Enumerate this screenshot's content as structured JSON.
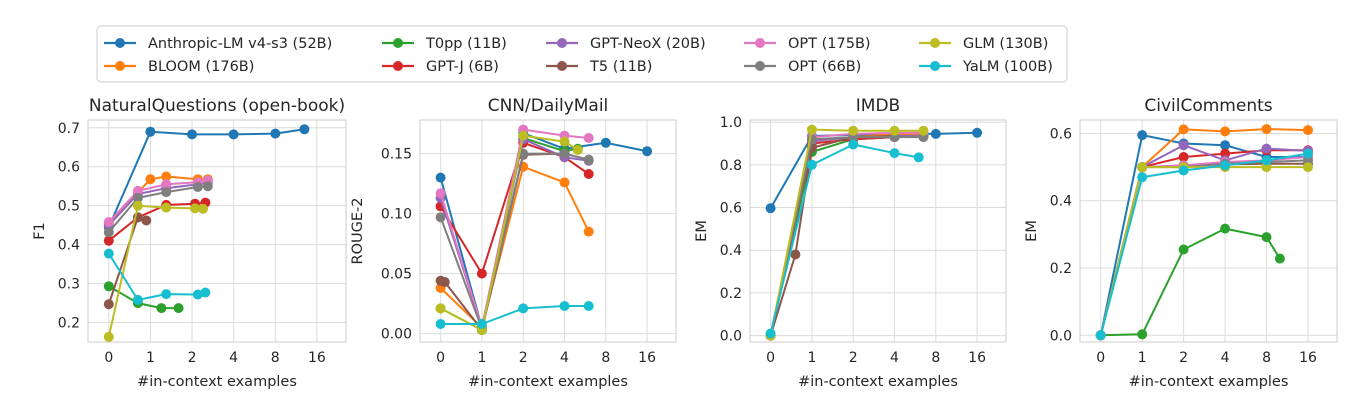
{
  "legend": {
    "items": [
      {
        "name": "Anthropic-LM v4-s3 (52B)",
        "color": "#1f77b4"
      },
      {
        "name": "BLOOM (176B)",
        "color": "#ff7f0e"
      },
      {
        "name": "T0pp (11B)",
        "color": "#2ca02c"
      },
      {
        "name": "GPT-J (6B)",
        "color": "#d62728"
      },
      {
        "name": "GPT-NeoX (20B)",
        "color": "#9467bd"
      },
      {
        "name": "T5 (11B)",
        "color": "#8c564b"
      },
      {
        "name": "OPT (175B)",
        "color": "#e377c2"
      },
      {
        "name": "OPT (66B)",
        "color": "#7f7f7f"
      },
      {
        "name": "GLM (130B)",
        "color": "#bcbd22"
      },
      {
        "name": "YaLM (100B)",
        "color": "#17becf"
      }
    ]
  },
  "chart_data": [
    {
      "type": "line",
      "title": "NaturalQuestions (open-book)",
      "xlabel": "#in-context examples",
      "ylabel": "F1",
      "x_scale": "symlog",
      "x_ticks": [
        "0",
        "1",
        "2",
        "4",
        "8",
        "16"
      ],
      "y_ticks": [
        "0.2",
        "0.3",
        "0.4",
        "0.5",
        "0.6",
        "0.7"
      ],
      "ylim": [
        0.15,
        0.72
      ],
      "grid": true,
      "series": [
        {
          "name": "Anthropic-LM v4-s3 (52B)",
          "x": [
            0,
            1,
            2,
            4,
            8,
            13
          ],
          "y": [
            0.445,
            0.69,
            0.683,
            0.683,
            0.685,
            0.696
          ]
        },
        {
          "name": "BLOOM (176B)",
          "x": [
            0,
            1,
            1.3,
            2.2,
            2.6
          ],
          "y": [
            0.455,
            0.568,
            0.575,
            0.568,
            0.568
          ]
        },
        {
          "name": "T0pp (11B)",
          "x": [
            0,
            0.7,
            1.2,
            1.6
          ],
          "y": [
            0.293,
            0.25,
            0.237,
            0.237
          ]
        },
        {
          "name": "GPT-J (6B)",
          "x": [
            0,
            0.7,
            1.3,
            2.1,
            2.5
          ],
          "y": [
            0.41,
            0.47,
            0.502,
            0.505,
            0.508
          ]
        },
        {
          "name": "GPT-NeoX (20B)",
          "x": [
            0,
            0.7,
            1.3,
            2.2,
            2.6
          ],
          "y": [
            0.45,
            0.53,
            0.545,
            0.555,
            0.56
          ]
        },
        {
          "name": "T5 (11B)",
          "x": [
            0,
            0.7,
            0.9
          ],
          "y": [
            0.247,
            0.47,
            0.462
          ]
        },
        {
          "name": "OPT (175B)",
          "x": [
            0,
            0.7,
            1.3,
            2.2,
            2.6
          ],
          "y": [
            0.458,
            0.538,
            0.555,
            0.56,
            0.565
          ]
        },
        {
          "name": "OPT (66B)",
          "x": [
            0,
            0.7,
            1.3,
            2.2,
            2.6
          ],
          "y": [
            0.432,
            0.52,
            0.535,
            0.548,
            0.55
          ]
        },
        {
          "name": "GLM (130B)",
          "x": [
            0,
            0.7,
            1.3,
            2.1,
            2.4
          ],
          "y": [
            0.163,
            0.5,
            0.495,
            0.493,
            0.492
          ]
        },
        {
          "name": "YaLM (100B)",
          "x": [
            0,
            0.7,
            1.3,
            2.2,
            2.5
          ],
          "y": [
            0.377,
            0.258,
            0.273,
            0.272,
            0.277
          ]
        }
      ]
    },
    {
      "type": "line",
      "title": "CNN/DailyMail",
      "xlabel": "#in-context examples",
      "ylabel": "ROUGE-2",
      "x_scale": "symlog",
      "x_ticks": [
        "0",
        "1",
        "2",
        "4",
        "8",
        "16"
      ],
      "y_ticks": [
        "0.00",
        "0.05",
        "0.10",
        "0.15"
      ],
      "ylim": [
        -0.007,
        0.178
      ],
      "grid": true,
      "series": [
        {
          "name": "Anthropic-LM v4-s3 (52B)",
          "x": [
            0,
            1,
            2,
            4,
            8,
            16
          ],
          "y": [
            0.13,
            0.005,
            0.167,
            0.154,
            0.159,
            0.152
          ]
        },
        {
          "name": "BLOOM (176B)",
          "x": [
            0,
            1,
            2,
            4,
            6
          ],
          "y": [
            0.038,
            0.005,
            0.139,
            0.126,
            0.085
          ]
        },
        {
          "name": "T0pp (11B)",
          "x": [
            0,
            1,
            2,
            4,
            5
          ],
          "y": [
            0.021,
            0.003,
            0.163,
            0.152,
            0.154
          ]
        },
        {
          "name": "GPT-J (6B)",
          "x": [
            0,
            1,
            2,
            4,
            6
          ],
          "y": [
            0.106,
            0.05,
            0.159,
            0.147,
            0.133
          ]
        },
        {
          "name": "GPT-NeoX (20B)",
          "x": [
            0,
            1,
            2,
            4,
            6
          ],
          "y": [
            0.113,
            0.005,
            0.162,
            0.147,
            0.144
          ]
        },
        {
          "name": "T5 (11B)",
          "x": [
            0,
            0.1,
            1,
            2,
            4
          ],
          "y": [
            0.044,
            0.043,
            0.003,
            0.149,
            0.15
          ]
        },
        {
          "name": "OPT (175B)",
          "x": [
            0,
            1,
            2,
            4,
            6
          ],
          "y": [
            0.117,
            0.005,
            0.17,
            0.165,
            0.163
          ]
        },
        {
          "name": "OPT (66B)",
          "x": [
            0,
            1,
            2,
            4,
            6
          ],
          "y": [
            0.097,
            0.004,
            0.15,
            0.15,
            0.145
          ]
        },
        {
          "name": "GLM (130B)",
          "x": [
            0,
            1,
            2,
            4,
            5
          ],
          "y": [
            0.021,
            0.003,
            0.165,
            0.16,
            0.153
          ]
        },
        {
          "name": "YaLM (100B)",
          "x": [
            0,
            1,
            2,
            4,
            6
          ],
          "y": [
            0.008,
            0.008,
            0.021,
            0.023,
            0.023
          ]
        }
      ]
    },
    {
      "type": "line",
      "title": "IMDB",
      "xlabel": "#in-context examples",
      "ylabel": "EM",
      "x_scale": "symlog",
      "x_ticks": [
        "0",
        "1",
        "2",
        "4",
        "8",
        "16"
      ],
      "y_ticks": [
        "0.0",
        "0.2",
        "0.4",
        "0.6",
        "0.8",
        "1.0"
      ],
      "ylim": [
        -0.03,
        1.01
      ],
      "grid": true,
      "series": [
        {
          "name": "Anthropic-LM v4-s3 (52B)",
          "x": [
            0,
            1,
            2,
            4,
            8,
            16
          ],
          "y": [
            0.597,
            0.935,
            0.94,
            0.945,
            0.945,
            0.95
          ]
        },
        {
          "name": "BLOOM (176B)",
          "x": [
            0,
            1,
            2,
            4,
            6.5
          ],
          "y": [
            0.0,
            0.88,
            0.93,
            0.945,
            0.945
          ]
        },
        {
          "name": "T0pp (11B)",
          "x": [
            0,
            1,
            2,
            4,
            6.5
          ],
          "y": [
            0.0,
            0.86,
            0.92,
            0.93,
            0.935
          ]
        },
        {
          "name": "GPT-J (6B)",
          "x": [
            0,
            1,
            2,
            4,
            6.5
          ],
          "y": [
            0.0,
            0.9,
            0.92,
            0.93,
            0.935
          ]
        },
        {
          "name": "GPT-NeoX (20B)",
          "x": [
            0,
            1,
            2,
            4,
            6.5
          ],
          "y": [
            0.0,
            0.91,
            0.93,
            0.935,
            0.935
          ]
        },
        {
          "name": "T5 (11B)",
          "x": [
            0,
            0.6,
            1,
            2,
            4
          ],
          "y": [
            0.0,
            0.38,
            0.88,
            0.93,
            0.935
          ]
        },
        {
          "name": "OPT (175B)",
          "x": [
            0,
            1,
            2,
            4,
            6.5
          ],
          "y": [
            0.0,
            0.93,
            0.945,
            0.95,
            0.95
          ]
        },
        {
          "name": "OPT (66B)",
          "x": [
            0,
            1,
            2,
            4,
            6.5
          ],
          "y": [
            0.0,
            0.92,
            0.93,
            0.93,
            0.93
          ]
        },
        {
          "name": "GLM (130B)",
          "x": [
            0,
            1,
            2,
            4,
            6.5
          ],
          "y": [
            0.0,
            0.965,
            0.96,
            0.96,
            0.96
          ]
        },
        {
          "name": "YaLM (100B)",
          "x": [
            0,
            1,
            2,
            4,
            6
          ],
          "y": [
            0.01,
            0.8,
            0.895,
            0.855,
            0.835
          ]
        }
      ]
    },
    {
      "type": "line",
      "title": "CivilComments",
      "xlabel": "#in-context examples",
      "ylabel": "EM",
      "x_scale": "symlog",
      "x_ticks": [
        "0",
        "1",
        "2",
        "4",
        "8",
        "16"
      ],
      "y_ticks": [
        "0.0",
        "0.2",
        "0.4",
        "0.6"
      ],
      "ylim": [
        -0.02,
        0.64
      ],
      "grid": true,
      "series": [
        {
          "name": "Anthropic-LM v4-s3 (52B)",
          "x": [
            0,
            1,
            2,
            4,
            8,
            16
          ],
          "y": [
            0.0,
            0.595,
            0.57,
            0.565,
            0.53,
            0.53
          ]
        },
        {
          "name": "BLOOM (176B)",
          "x": [
            0,
            1,
            2,
            4,
            8,
            16
          ],
          "y": [
            0.0,
            0.5,
            0.612,
            0.606,
            0.613,
            0.61
          ]
        },
        {
          "name": "T0pp (11B)",
          "x": [
            0,
            1,
            2,
            4,
            8,
            10
          ],
          "y": [
            0.0,
            0.003,
            0.255,
            0.317,
            0.292,
            0.228
          ]
        },
        {
          "name": "GPT-J (6B)",
          "x": [
            0,
            1,
            2,
            4,
            8,
            16
          ],
          "y": [
            0.0,
            0.5,
            0.53,
            0.54,
            0.55,
            0.55
          ]
        },
        {
          "name": "GPT-NeoX (20B)",
          "x": [
            0,
            1,
            2,
            4,
            8,
            16
          ],
          "y": [
            0.0,
            0.5,
            0.565,
            0.52,
            0.555,
            0.548
          ]
        },
        {
          "name": "T5 (11B)",
          "x": [
            0,
            1,
            2,
            4,
            8,
            16
          ],
          "y": [
            0.0,
            0.5,
            0.505,
            0.508,
            0.51,
            0.51
          ]
        },
        {
          "name": "OPT (175B)",
          "x": [
            0,
            1,
            2,
            4,
            8,
            16
          ],
          "y": [
            0.0,
            0.5,
            0.505,
            0.515,
            0.52,
            0.53
          ]
        },
        {
          "name": "OPT (66B)",
          "x": [
            0,
            1,
            2,
            4,
            8,
            16
          ],
          "y": [
            0.0,
            0.5,
            0.5,
            0.51,
            0.515,
            0.52
          ]
        },
        {
          "name": "GLM (130B)",
          "x": [
            0,
            1,
            2,
            4,
            8,
            16
          ],
          "y": [
            0.0,
            0.5,
            0.5,
            0.5,
            0.5,
            0.5
          ]
        },
        {
          "name": "YaLM (100B)",
          "x": [
            0,
            1,
            2,
            4,
            8,
            16
          ],
          "y": [
            0.0,
            0.47,
            0.49,
            0.505,
            0.52,
            0.54
          ]
        }
      ]
    }
  ]
}
